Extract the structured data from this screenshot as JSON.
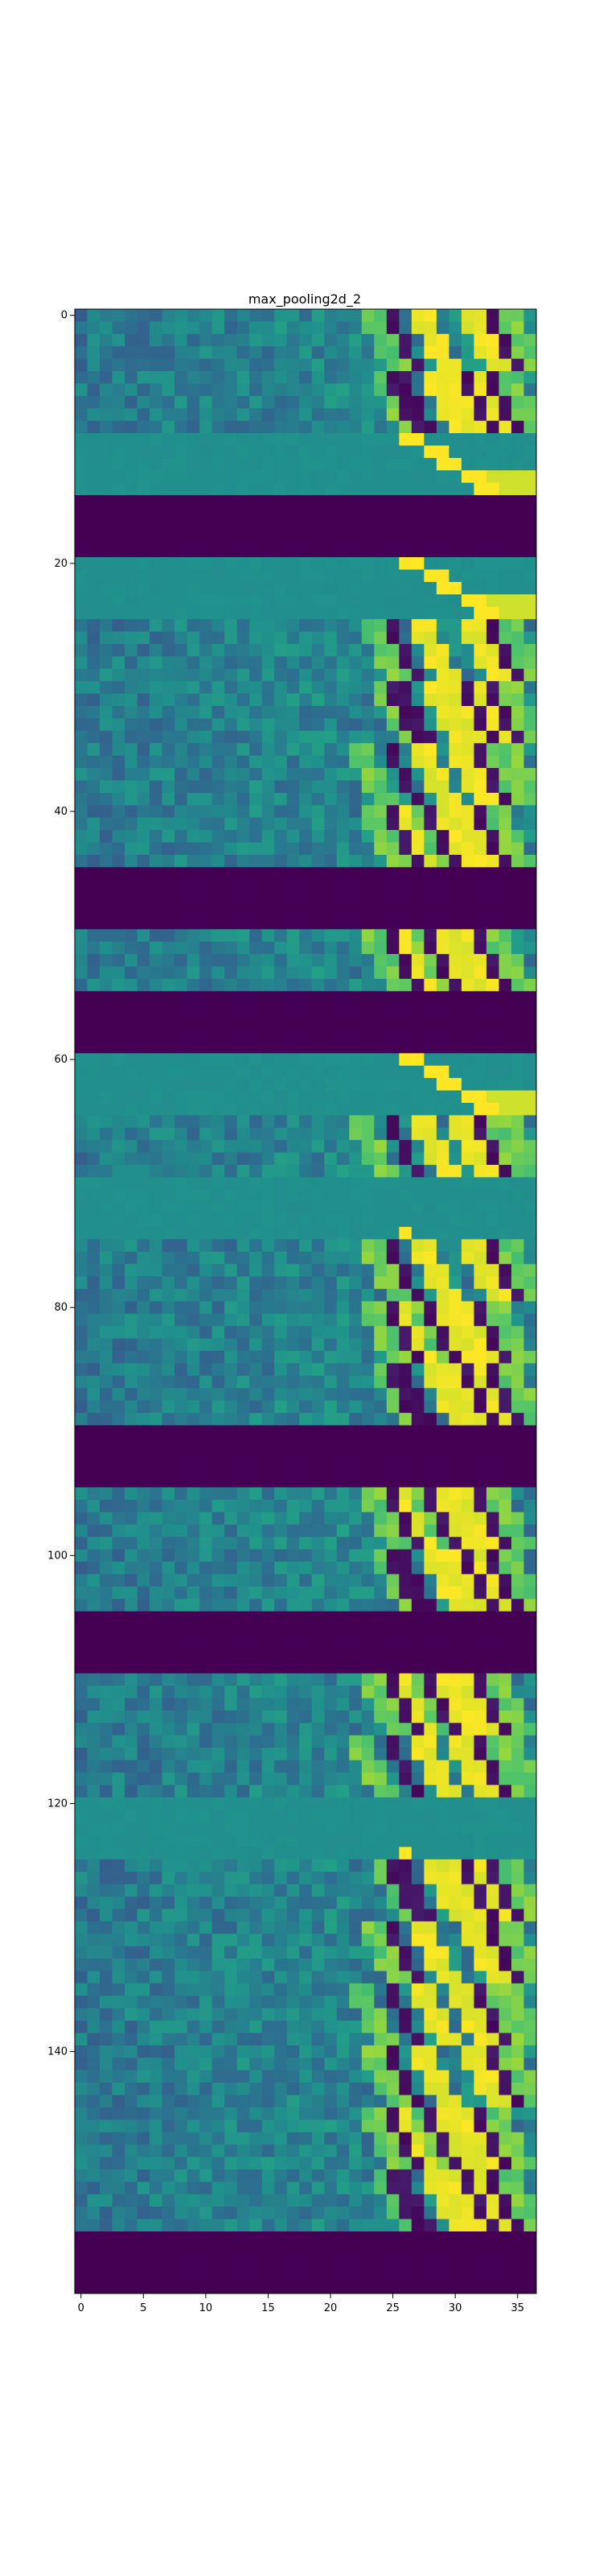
{
  "chart_data": {
    "type": "heatmap",
    "title": "max_pooling2d_2",
    "xlabel": "",
    "ylabel": "",
    "colormap": "viridis",
    "n_cols": 37,
    "n_rows": 160,
    "x_ticks": [
      0,
      5,
      10,
      15,
      20,
      25,
      30,
      35
    ],
    "y_ticks": [
      0,
      20,
      40,
      60,
      80,
      100,
      120,
      140
    ],
    "grid": false,
    "colors": {
      "background": "#ffffff",
      "dark": "#440154",
      "neutral": "#2a8c8d",
      "bright": "#fde725"
    },
    "blocks": [
      {
        "rows": [
          0,
          4
        ],
        "kind": "tex",
        "pattern": "A"
      },
      {
        "rows": [
          5,
          9
        ],
        "kind": "tex",
        "pattern": "B"
      },
      {
        "rows": [
          10,
          14
        ],
        "kind": "flat",
        "pattern": "C"
      },
      {
        "rows": [
          15,
          19
        ],
        "kind": "dark"
      },
      {
        "rows": [
          20,
          24
        ],
        "kind": "flat",
        "pattern": "C"
      },
      {
        "rows": [
          25,
          29
        ],
        "kind": "tex",
        "pattern": "A"
      },
      {
        "rows": [
          30,
          34
        ],
        "kind": "tex",
        "pattern": "B"
      },
      {
        "rows": [
          35,
          39
        ],
        "kind": "tex",
        "pattern": "D"
      },
      {
        "rows": [
          40,
          44
        ],
        "kind": "tex",
        "pattern": "E"
      },
      {
        "rows": [
          45,
          49
        ],
        "kind": "dark"
      },
      {
        "rows": [
          50,
          54
        ],
        "kind": "tex",
        "pattern": "E"
      },
      {
        "rows": [
          55,
          59
        ],
        "kind": "dark"
      },
      {
        "rows": [
          60,
          64
        ],
        "kind": "flat",
        "pattern": "C"
      },
      {
        "rows": [
          65,
          69
        ],
        "kind": "tex",
        "pattern": "D"
      },
      {
        "rows": [
          70,
          74
        ],
        "kind": "flat",
        "pattern": "F"
      },
      {
        "rows": [
          75,
          79
        ],
        "kind": "tex",
        "pattern": "A"
      },
      {
        "rows": [
          80,
          84
        ],
        "kind": "tex",
        "pattern": "E"
      },
      {
        "rows": [
          85,
          89
        ],
        "kind": "tex",
        "pattern": "B"
      },
      {
        "rows": [
          90,
          94
        ],
        "kind": "dark"
      },
      {
        "rows": [
          95,
          99
        ],
        "kind": "tex",
        "pattern": "E"
      },
      {
        "rows": [
          100,
          104
        ],
        "kind": "tex",
        "pattern": "B"
      },
      {
        "rows": [
          105,
          109
        ],
        "kind": "dark"
      },
      {
        "rows": [
          110,
          114
        ],
        "kind": "tex",
        "pattern": "E"
      },
      {
        "rows": [
          115,
          119
        ],
        "kind": "tex",
        "pattern": "D"
      },
      {
        "rows": [
          120,
          124
        ],
        "kind": "flat",
        "pattern": "F"
      },
      {
        "rows": [
          125,
          129
        ],
        "kind": "tex",
        "pattern": "B"
      },
      {
        "rows": [
          130,
          134
        ],
        "kind": "tex",
        "pattern": "A"
      },
      {
        "rows": [
          135,
          139
        ],
        "kind": "tex",
        "pattern": "D"
      },
      {
        "rows": [
          140,
          144
        ],
        "kind": "tex",
        "pattern": "A"
      },
      {
        "rows": [
          145,
          149
        ],
        "kind": "tex",
        "pattern": "E"
      },
      {
        "rows": [
          150,
          154
        ],
        "kind": "tex",
        "pattern": "B"
      },
      {
        "rows": [
          155,
          159
        ],
        "kind": "dark"
      }
    ]
  }
}
